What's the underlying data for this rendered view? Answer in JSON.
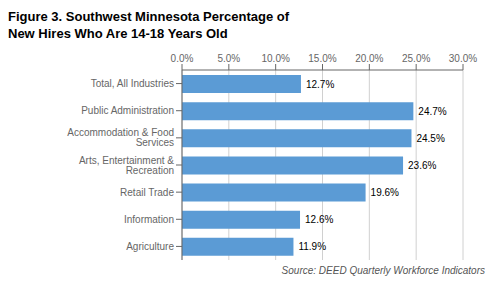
{
  "chart_data": {
    "type": "bar",
    "title": "Figure 3. Southwest Minnesota Percentage of\nNew Hires Who Are 14-18 Years Old",
    "categories": [
      "Agriculture",
      "Information",
      "Retail Trade",
      "Arts, Entertainment & Recreation",
      "Accommodation & Food Services",
      "Public Administration",
      "Total, All Industries"
    ],
    "values": [
      11.9,
      12.6,
      19.6,
      23.6,
      24.5,
      24.7,
      12.7
    ],
    "value_labels": [
      "11.9%",
      "12.6%",
      "19.6%",
      "23.6%",
      "24.5%",
      "24.7%",
      "12.7%"
    ],
    "data_labels": true,
    "color": "#5b9bd5",
    "orientation": "horizontal",
    "xlim": [
      0,
      30
    ],
    "xticks": [
      {
        "value": 0,
        "label": "0.0%"
      },
      {
        "value": 5,
        "label": "5.0%"
      },
      {
        "value": 10,
        "label": "10.0%"
      },
      {
        "value": 15,
        "label": "15.0%"
      },
      {
        "value": 20,
        "label": "20.0%"
      },
      {
        "value": 25,
        "label": "25.0%"
      },
      {
        "value": 30,
        "label": "30.0%"
      }
    ],
    "grid": true,
    "annotations": [
      "Source: DEED Quarterly Workforce Indicators"
    ]
  }
}
